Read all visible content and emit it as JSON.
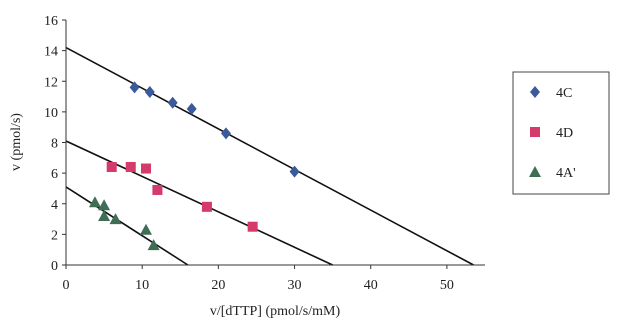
{
  "chart_data": {
    "type": "scatter",
    "xlabel": "v/[dTTP] (pmol/s/mM)",
    "ylabel": "v (pmol/s)",
    "xlim": [
      0,
      55
    ],
    "ylim": [
      0,
      16
    ],
    "x_ticks": [
      0,
      10,
      20,
      30,
      40,
      50
    ],
    "y_ticks": [
      0,
      2,
      4,
      6,
      8,
      10,
      12,
      14,
      16
    ],
    "grid": false,
    "legend_position": "right",
    "series": [
      {
        "name": "4C",
        "marker": "diamond",
        "color": "#3a5a9c",
        "points": [
          [
            9,
            11.6
          ],
          [
            11,
            11.3
          ],
          [
            14,
            10.6
          ],
          [
            16.5,
            10.2
          ],
          [
            21,
            8.6
          ],
          [
            30,
            6.1
          ]
        ],
        "fit_line": [
          [
            0,
            14.2
          ],
          [
            53.5,
            0
          ]
        ]
      },
      {
        "name": "4D",
        "marker": "square",
        "color": "#d43a6a",
        "points": [
          [
            6,
            6.4
          ],
          [
            8.5,
            6.4
          ],
          [
            10.5,
            6.3
          ],
          [
            12,
            4.9
          ],
          [
            18.5,
            3.8
          ],
          [
            24.5,
            2.5
          ]
        ],
        "fit_line": [
          [
            0,
            8.1
          ],
          [
            35,
            0
          ]
        ]
      },
      {
        "name": "4A'",
        "marker": "triangle",
        "color": "#3f6e55",
        "points": [
          [
            3.8,
            4.1
          ],
          [
            5,
            3.9
          ],
          [
            5,
            3.2
          ],
          [
            6.5,
            3.0
          ],
          [
            10.5,
            2.3
          ],
          [
            11.5,
            1.3
          ]
        ],
        "fit_line": [
          [
            0,
            5.1
          ],
          [
            16,
            0
          ]
        ]
      }
    ]
  }
}
